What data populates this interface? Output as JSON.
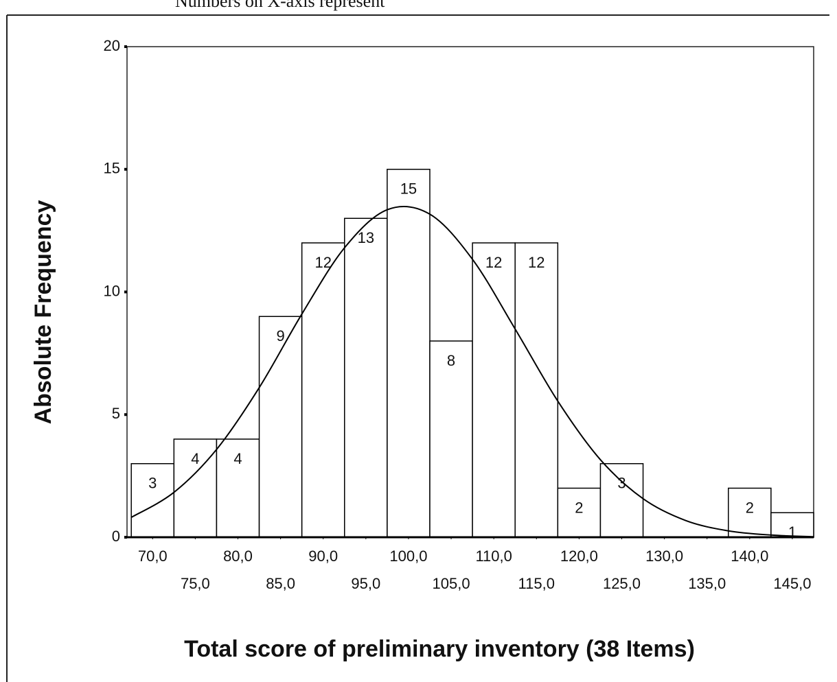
{
  "chart_data": {
    "type": "histogram",
    "annotation": "Numbers on X-axis represent",
    "xlabel": "Total score of preliminary inventory (38 Items)",
    "ylabel": "Absolute Frequency",
    "bins": [
      67.5,
      72.5,
      77.5,
      82.5,
      87.5,
      92.5,
      97.5,
      102.5,
      107.5,
      112.5,
      117.5,
      122.5,
      127.5,
      132.5,
      137.5,
      142.5,
      147.5
    ],
    "counts": [
      3,
      4,
      4,
      9,
      12,
      13,
      15,
      8,
      12,
      12,
      2,
      3,
      0,
      0,
      2,
      1
    ],
    "value_labels": [
      "3",
      "4",
      "4",
      "9",
      "12",
      "13",
      "15",
      "8",
      "12",
      "12",
      "2",
      "3",
      null,
      null,
      "2",
      "1"
    ],
    "color": "#ffffff",
    "edge_color": "#000000",
    "curve": {
      "x": [
        67.5,
        72.5,
        77.5,
        82.5,
        87.5,
        92.5,
        97.5,
        102.5,
        107.5,
        112.5,
        117.5,
        122.5,
        127.5,
        132.5,
        137.5,
        142.5,
        147.5
      ],
      "y": [
        0.81,
        1.83,
        3.58,
        6.1,
        9.1,
        11.8,
        13.35,
        13.17,
        11.33,
        8.49,
        5.55,
        3.16,
        1.57,
        0.68,
        0.26,
        0.09,
        0.02
      ]
    },
    "xlim": [
      67,
      147.5
    ],
    "ylim": [
      0,
      20
    ],
    "xticks": [
      {
        "value": 70,
        "label": "70,0"
      },
      {
        "value": 75,
        "label": "75,0"
      },
      {
        "value": 80,
        "label": "80,0"
      },
      {
        "value": 85,
        "label": "85,0"
      },
      {
        "value": 90,
        "label": "90,0"
      },
      {
        "value": 95,
        "label": "95,0"
      },
      {
        "value": 100,
        "label": "100,0"
      },
      {
        "value": 105,
        "label": "105,0"
      },
      {
        "value": 110,
        "label": "110,0"
      },
      {
        "value": 115,
        "label": "115,0"
      },
      {
        "value": 120,
        "label": "120,0"
      },
      {
        "value": 125,
        "label": "125,0"
      },
      {
        "value": 130,
        "label": "130,0"
      },
      {
        "value": 135,
        "label": "135,0"
      },
      {
        "value": 140,
        "label": "140,0"
      },
      {
        "value": 145,
        "label": "145,0"
      }
    ],
    "yticks": [
      0,
      5,
      10,
      15,
      20
    ]
  }
}
